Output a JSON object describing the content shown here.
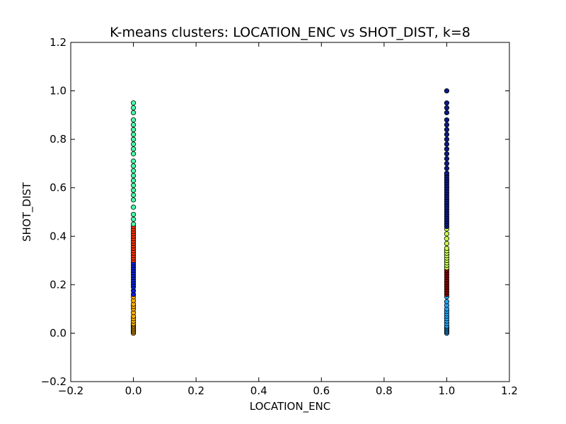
{
  "chart_data": {
    "type": "scatter",
    "title": "K-means clusters: LOCATION_ENC vs SHOT_DIST, k=8",
    "xlabel": "LOCATION_ENC",
    "ylabel": "SHOT_DIST",
    "xlim": [
      -0.2,
      1.2
    ],
    "ylim": [
      -0.2,
      1.2
    ],
    "xticks": [
      "−0.2",
      "0.0",
      "0.2",
      "0.4",
      "0.6",
      "0.8",
      "1.0",
      "1.2"
    ],
    "yticks": [
      "−0.2",
      "0.0",
      "0.2",
      "0.4",
      "0.6",
      "0.8",
      "1.0",
      "1.2"
    ],
    "grid": false,
    "series": [
      {
        "color": "#ffb000",
        "x": 0.0,
        "y": [
          0.0,
          0.005,
          0.01,
          0.015,
          0.02,
          0.025,
          0.03,
          0.035,
          0.04,
          0.05,
          0.06,
          0.07,
          0.085,
          0.1,
          0.11,
          0.12,
          0.135,
          0.15
        ]
      },
      {
        "color": "#0b1fd6",
        "x": 0.0,
        "y": [
          0.16,
          0.175,
          0.19,
          0.2,
          0.21,
          0.22,
          0.23,
          0.24,
          0.25,
          0.26,
          0.27,
          0.28,
          0.29
        ]
      },
      {
        "color": "#ff3300",
        "x": 0.0,
        "y": [
          0.3,
          0.31,
          0.32,
          0.33,
          0.34,
          0.35,
          0.36,
          0.37,
          0.38,
          0.39,
          0.4,
          0.41,
          0.42,
          0.43,
          0.44
        ]
      },
      {
        "color": "#4dffa9",
        "x": 0.0,
        "y": [
          0.45,
          0.47,
          0.49,
          0.52,
          0.55,
          0.57,
          0.59,
          0.61,
          0.63,
          0.65,
          0.67,
          0.69,
          0.71,
          0.74,
          0.76,
          0.78,
          0.8,
          0.82,
          0.84,
          0.86,
          0.88,
          0.91,
          0.93,
          0.95
        ]
      },
      {
        "color": "#1ca8ff",
        "x": 1.0,
        "y": [
          0.0,
          0.005,
          0.01,
          0.015,
          0.02,
          0.025,
          0.03,
          0.04,
          0.05,
          0.06,
          0.07,
          0.08,
          0.09,
          0.1,
          0.115,
          0.13,
          0.15
        ]
      },
      {
        "color": "#8b0000",
        "x": 1.0,
        "y": [
          0.16,
          0.17,
          0.18,
          0.19,
          0.2,
          0.21,
          0.22,
          0.23,
          0.24,
          0.25,
          0.26
        ]
      },
      {
        "color": "#c8ff4a",
        "x": 1.0,
        "y": [
          0.27,
          0.28,
          0.29,
          0.3,
          0.31,
          0.32,
          0.33,
          0.34,
          0.35,
          0.37,
          0.39,
          0.41,
          0.43
        ]
      },
      {
        "color": "#0a1a8c",
        "x": 1.0,
        "y": [
          0.44,
          0.45,
          0.46,
          0.47,
          0.48,
          0.49,
          0.5,
          0.51,
          0.52,
          0.53,
          0.54,
          0.55,
          0.56,
          0.57,
          0.58,
          0.59,
          0.6,
          0.61,
          0.62,
          0.63,
          0.64,
          0.65,
          0.66,
          0.68,
          0.7,
          0.72,
          0.74,
          0.76,
          0.78,
          0.8,
          0.82,
          0.84,
          0.86,
          0.88,
          0.91,
          0.93,
          0.95,
          1.0
        ]
      }
    ]
  }
}
